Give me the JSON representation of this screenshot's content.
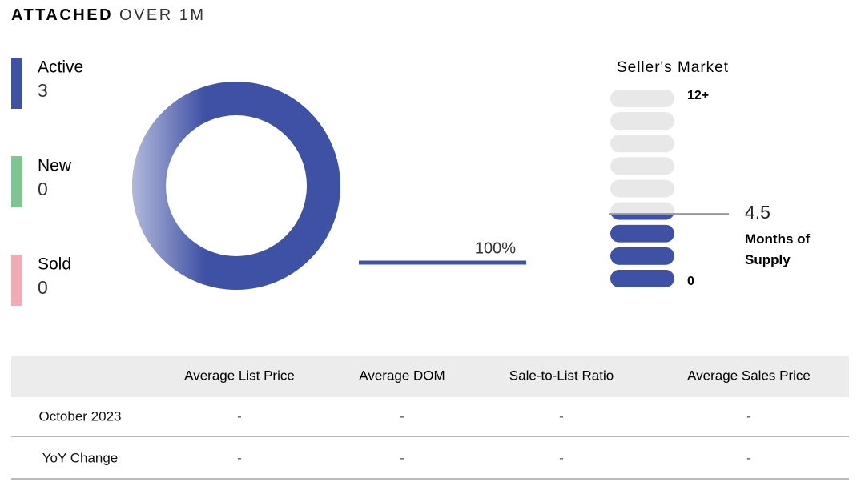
{
  "header": {
    "title_bold": "ATTACHED",
    "title_rest": "OVER 1M"
  },
  "chart_data": [
    {
      "type": "donut",
      "categories": [
        "Active",
        "New",
        "Sold"
      ],
      "values": [
        3,
        0,
        0
      ],
      "colors": [
        "#3f51a5",
        "#7dc68f",
        "#f2aab5"
      ],
      "annotation": "100%"
    },
    {
      "type": "gauge",
      "title": "Seller's Market",
      "value": 4.5,
      "caption": "Months of Supply",
      "ylim": [
        0,
        12
      ],
      "yticks": [
        0,
        {
          "value": 12,
          "label": "12+"
        }
      ],
      "segments": 9,
      "color": "#3f51a5",
      "empty_color": "#e8e8e8"
    }
  ],
  "table": {
    "header": [
      "Average List Price",
      "Average DOM",
      "Sale-to-List Ratio",
      "Average Sales Price"
    ],
    "rows": [
      [
        "October 2023",
        "-",
        "-",
        "-",
        "-"
      ],
      [
        "YoY Change",
        "-",
        "-",
        "-",
        "-"
      ]
    ]
  }
}
